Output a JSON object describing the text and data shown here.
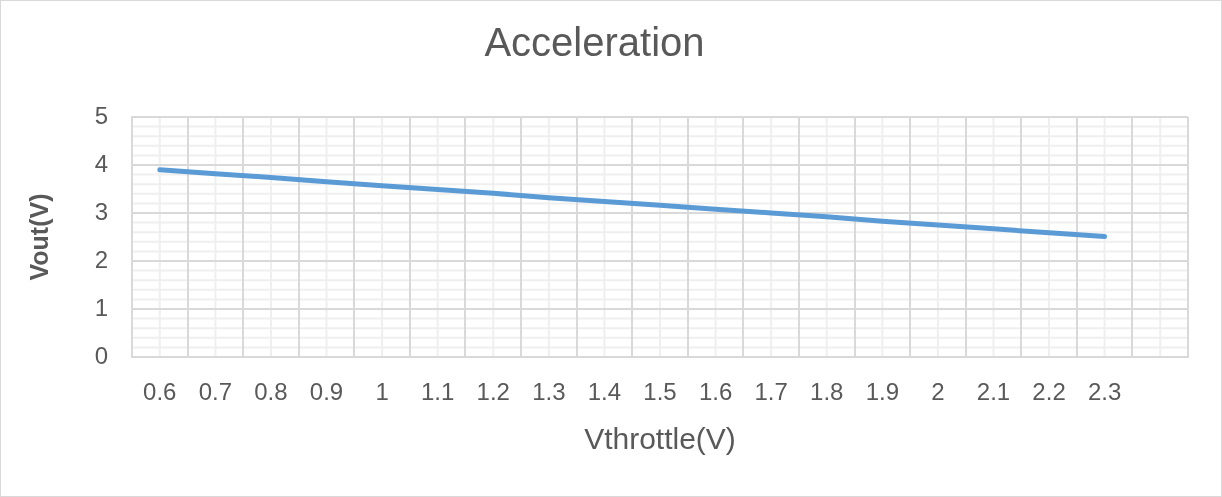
{
  "chart_data": {
    "type": "line",
    "title": "Acceleration",
    "xlabel": "Vthrottle(V)",
    "ylabel": "Vout(V)",
    "categories": [
      "0.6",
      "0.7",
      "0.8",
      "0.9",
      "1",
      "1.1",
      "1.2",
      "1.3",
      "1.4",
      "1.5",
      "1.6",
      "1.7",
      "1.8",
      "1.9",
      "2",
      "2.1",
      "2.2",
      "2.3",
      null
    ],
    "values": [
      3.9,
      3.82,
      3.74,
      3.65,
      3.57,
      3.49,
      3.41,
      3.32,
      3.24,
      3.16,
      3.08,
      3.0,
      2.92,
      2.83,
      2.75,
      2.67,
      2.59,
      2.51,
      null
    ],
    "color": "#5b9bd5",
    "ylim": [
      0,
      5
    ],
    "yticks": [
      0,
      1,
      2,
      3,
      4,
      5
    ],
    "grid": true
  }
}
